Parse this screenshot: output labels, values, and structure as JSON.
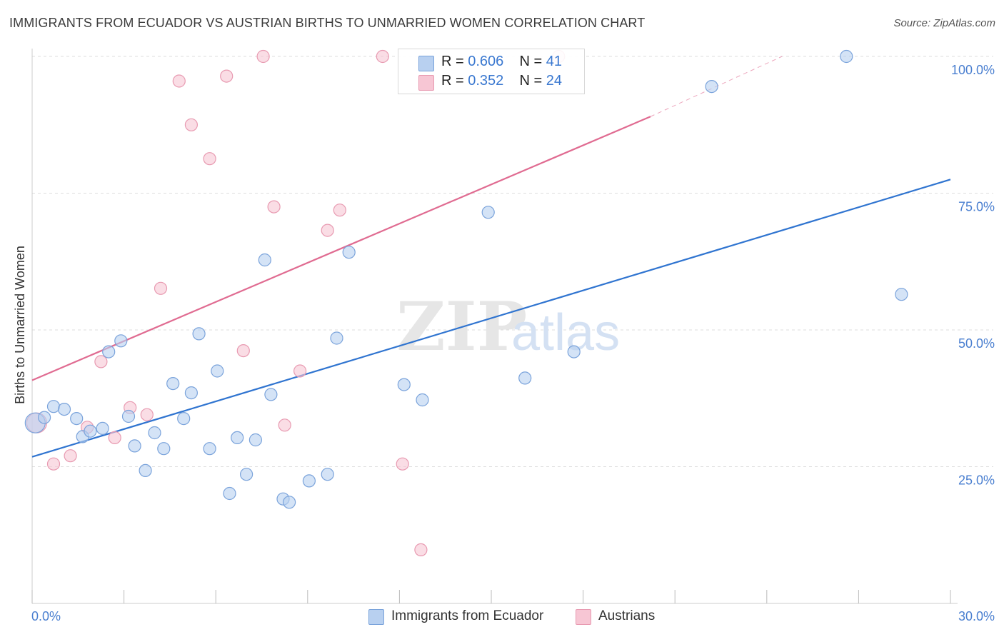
{
  "header": {
    "title": "IMMIGRANTS FROM ECUADOR VS AUSTRIAN BIRTHS TO UNMARRIED WOMEN CORRELATION CHART",
    "source": "Source: ZipAtlas.com"
  },
  "watermark": {
    "zip": "ZIP",
    "atlas": "atlas"
  },
  "legend_top": {
    "rows": [
      {
        "r_label": "R =",
        "r_value": "0.606",
        "n_label": "N =",
        "n_value": "41"
      },
      {
        "r_label": "R =",
        "r_value": "0.352",
        "n_label": "N =",
        "n_value": "24"
      }
    ]
  },
  "legend_bottom": {
    "items": [
      {
        "label": "Immigrants from Ecuador"
      },
      {
        "label": "Austrians"
      }
    ]
  },
  "colors": {
    "blue_fill": "#b8d0f0",
    "blue_stroke": "#7aa3db",
    "blue_line": "#2f74d0",
    "pink_fill": "#f7c6d4",
    "pink_stroke": "#e89ab1",
    "pink_line": "#e06b91",
    "axis_text": "#4a7fd0",
    "grid": "#dddddd"
  },
  "chart_data": {
    "type": "scatter",
    "title": "IMMIGRANTS FROM ECUADOR VS AUSTRIAN BIRTHS TO UNMARRIED WOMEN CORRELATION CHART",
    "xlabel": "",
    "ylabel": "Births to Unmarried Women",
    "xlim": [
      0,
      30
    ],
    "ylim": [
      0,
      100
    ],
    "x_tick_labels": [
      "0.0%",
      "30.0%"
    ],
    "y_tick_labels": [
      "25.0%",
      "50.0%",
      "75.0%",
      "100.0%"
    ],
    "y_tick_values": [
      25,
      50,
      75,
      100
    ],
    "grid": true,
    "legend_position": "top-center",
    "series": [
      {
        "name": "Immigrants from Ecuador",
        "color": "#b8d0f0",
        "r": 0.606,
        "n": 41,
        "trend": {
          "x": [
            0,
            30
          ],
          "y": [
            26.8,
            77.5
          ]
        },
        "points": [
          [
            0.1,
            33.0
          ],
          [
            0.4,
            34.0
          ],
          [
            0.7,
            36.0
          ],
          [
            1.05,
            35.5
          ],
          [
            1.45,
            33.8
          ],
          [
            1.65,
            30.5
          ],
          [
            1.9,
            31.5
          ],
          [
            2.3,
            32.0
          ],
          [
            2.5,
            46.0
          ],
          [
            2.9,
            48.0
          ],
          [
            3.15,
            34.2
          ],
          [
            3.35,
            28.8
          ],
          [
            3.7,
            24.3
          ],
          [
            4.0,
            31.2
          ],
          [
            4.3,
            28.3
          ],
          [
            4.6,
            40.2
          ],
          [
            4.95,
            33.8
          ],
          [
            5.2,
            38.5
          ],
          [
            5.45,
            49.3
          ],
          [
            5.8,
            28.3
          ],
          [
            6.05,
            42.5
          ],
          [
            6.45,
            20.1
          ],
          [
            6.7,
            30.3
          ],
          [
            7.0,
            23.6
          ],
          [
            7.3,
            29.9
          ],
          [
            7.6,
            62.8
          ],
          [
            7.8,
            38.2
          ],
          [
            8.2,
            19.1
          ],
          [
            8.4,
            18.5
          ],
          [
            9.05,
            22.4
          ],
          [
            9.65,
            23.6
          ],
          [
            9.95,
            48.5
          ],
          [
            10.35,
            64.2
          ],
          [
            12.15,
            40.0
          ],
          [
            12.75,
            37.2
          ],
          [
            14.9,
            71.5
          ],
          [
            16.1,
            41.2
          ],
          [
            17.7,
            46.0
          ],
          [
            22.2,
            94.5
          ],
          [
            26.6,
            100.0
          ],
          [
            28.4,
            56.5
          ]
        ]
      },
      {
        "name": "Austrians",
        "color": "#f7c6d4",
        "r": 0.352,
        "n": 24,
        "trend": {
          "x": [
            0,
            20.2
          ],
          "y": [
            40.8,
            89.0
          ]
        },
        "trend_dashed": {
          "x": [
            20.2,
            24.5
          ],
          "y": [
            89.0,
            100.0
          ]
        },
        "points": [
          [
            0.15,
            33.0
          ],
          [
            0.7,
            25.5
          ],
          [
            1.25,
            27.0
          ],
          [
            1.8,
            32.2
          ],
          [
            2.25,
            44.2
          ],
          [
            2.7,
            30.3
          ],
          [
            3.2,
            35.8
          ],
          [
            3.75,
            34.5
          ],
          [
            4.2,
            57.6
          ],
          [
            4.8,
            95.5
          ],
          [
            5.2,
            87.5
          ],
          [
            5.8,
            81.3
          ],
          [
            6.35,
            96.4
          ],
          [
            6.9,
            46.2
          ],
          [
            7.55,
            100.0
          ],
          [
            7.9,
            72.5
          ],
          [
            8.25,
            32.6
          ],
          [
            8.75,
            42.5
          ],
          [
            9.65,
            68.2
          ],
          [
            10.05,
            71.9
          ],
          [
            11.45,
            100.0
          ],
          [
            12.1,
            25.5
          ],
          [
            12.7,
            9.8
          ],
          [
            17.2,
            100.0
          ]
        ]
      }
    ]
  }
}
